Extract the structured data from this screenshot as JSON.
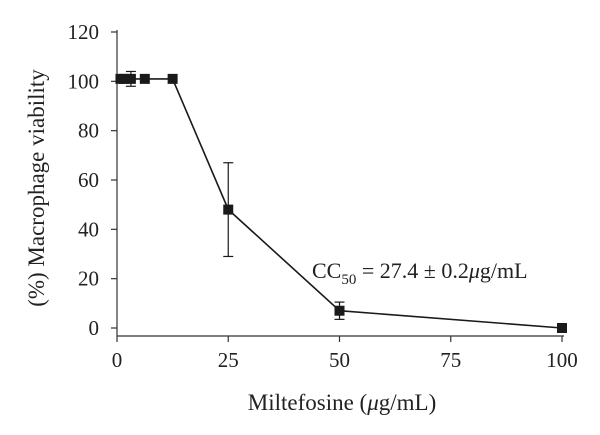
{
  "chart_data": {
    "type": "line",
    "xlabel": {
      "prefix": "Miltefosine (",
      "mu": "μ",
      "suffix": "g/mL)"
    },
    "ylabel": "(%) Macrophage viability",
    "xlim": [
      0,
      100
    ],
    "ylim": [
      0,
      120
    ],
    "xticks": [
      0,
      25,
      50,
      75,
      100
    ],
    "yticks": [
      0,
      20,
      40,
      60,
      80,
      100,
      120
    ],
    "grid": false,
    "legend": "none",
    "series": [
      {
        "x": [
          0.78,
          1.56,
          3.125,
          6.25,
          12.5,
          25,
          50,
          100
        ],
        "y": [
          101,
          101,
          101,
          101,
          101,
          48,
          7,
          0
        ],
        "error": [
          0,
          0,
          3,
          0,
          0,
          19,
          3.5,
          0
        ],
        "marker": "square",
        "color": "#1a1a1a"
      }
    ],
    "annotation": {
      "lead": "CC",
      "sub": "50",
      "eq": " = 27.4 ± 0.2",
      "mu": "μ",
      "unit": "g/mL",
      "anchor_x": 50,
      "anchor_y": 20
    }
  }
}
